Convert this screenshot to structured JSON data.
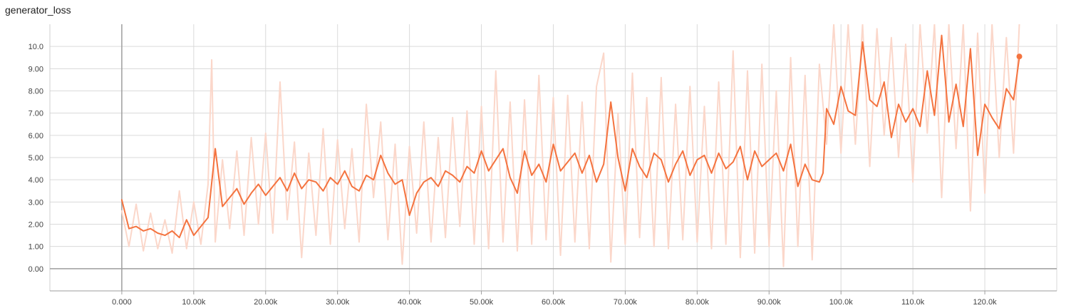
{
  "chart_data": {
    "type": "line",
    "title": "generator_loss",
    "xlabel": "",
    "ylabel": "",
    "xlim": [
      -10000,
      130000
    ],
    "ylim": [
      -1,
      11
    ],
    "grid": true,
    "x_ticks": [
      {
        "value": 0,
        "label": "0.000"
      },
      {
        "value": 10000,
        "label": "10.00k"
      },
      {
        "value": 20000,
        "label": "20.00k"
      },
      {
        "value": 30000,
        "label": "30.00k"
      },
      {
        "value": 40000,
        "label": "40.00k"
      },
      {
        "value": 50000,
        "label": "50.00k"
      },
      {
        "value": 60000,
        "label": "60.00k"
      },
      {
        "value": 70000,
        "label": "70.00k"
      },
      {
        "value": 80000,
        "label": "80.00k"
      },
      {
        "value": 90000,
        "label": "90.00k"
      },
      {
        "value": 100000,
        "label": "100.0k"
      },
      {
        "value": 110000,
        "label": "110.0k"
      },
      {
        "value": 120000,
        "label": "120.0k"
      }
    ],
    "y_ticks": [
      {
        "value": 0,
        "label": "0.00"
      },
      {
        "value": 1,
        "label": "1.00"
      },
      {
        "value": 2,
        "label": "2.00"
      },
      {
        "value": 3,
        "label": "3.00"
      },
      {
        "value": 4,
        "label": "4.00"
      },
      {
        "value": 5,
        "label": "5.00"
      },
      {
        "value": 6,
        "label": "6.00"
      },
      {
        "value": 7,
        "label": "7.00"
      },
      {
        "value": 8,
        "label": "8.00"
      },
      {
        "value": 9,
        "label": "9.00"
      },
      {
        "value": 10,
        "label": "10.0"
      }
    ],
    "series": [
      {
        "role": "smoothed",
        "color": "#f4733f",
        "x": [
          0,
          1000,
          2000,
          3000,
          4000,
          5000,
          6000,
          7000,
          8000,
          9000,
          10000,
          11000,
          12000,
          13000,
          14000,
          15000,
          16000,
          17000,
          18000,
          19000,
          20000,
          21000,
          22000,
          23000,
          24000,
          25000,
          26000,
          27000,
          28000,
          29000,
          30000,
          31000,
          32000,
          33000,
          34000,
          35000,
          36000,
          37000,
          38000,
          39000,
          40000,
          41000,
          42000,
          43000,
          44000,
          45000,
          46000,
          47000,
          48000,
          49000,
          50000,
          51000,
          52000,
          53000,
          54000,
          55000,
          56000,
          57000,
          58000,
          59000,
          60000,
          61000,
          62000,
          63000,
          64000,
          65000,
          66000,
          67000,
          68000,
          69000,
          70000,
          71000,
          72000,
          73000,
          74000,
          75000,
          76000,
          77000,
          78000,
          79000,
          80000,
          81000,
          82000,
          83000,
          84000,
          85000,
          86000,
          87000,
          88000,
          89000,
          90000,
          91000,
          92000,
          93000,
          94000,
          95000,
          96000,
          97000,
          97500,
          98000,
          99000,
          100000,
          101000,
          102000,
          103000,
          104000,
          105000,
          106000,
          107000,
          108000,
          109000,
          110000,
          111000,
          112000,
          113000,
          114000,
          115000,
          116000,
          117000,
          118000,
          119000,
          120000,
          121000,
          122000,
          123000,
          124000,
          124800
        ],
        "y": [
          3.1,
          1.8,
          1.9,
          1.7,
          1.8,
          1.6,
          1.5,
          1.7,
          1.4,
          2.2,
          1.5,
          1.9,
          2.3,
          5.4,
          2.8,
          3.2,
          3.6,
          2.9,
          3.4,
          3.8,
          3.3,
          3.7,
          4.1,
          3.5,
          4.3,
          3.6,
          4.0,
          3.9,
          3.5,
          4.1,
          3.8,
          4.4,
          3.7,
          3.5,
          4.2,
          4.0,
          5.1,
          4.3,
          3.8,
          4.0,
          2.4,
          3.4,
          3.9,
          4.1,
          3.7,
          4.4,
          4.2,
          3.9,
          4.6,
          4.3,
          5.3,
          4.4,
          4.9,
          5.4,
          4.1,
          3.4,
          5.3,
          4.2,
          4.7,
          3.9,
          5.6,
          4.4,
          4.8,
          5.2,
          4.3,
          5.1,
          3.9,
          4.7,
          7.5,
          5.0,
          3.5,
          5.4,
          4.6,
          4.1,
          5.2,
          4.9,
          3.9,
          4.7,
          5.3,
          4.2,
          4.9,
          5.1,
          4.3,
          5.2,
          4.5,
          4.8,
          5.5,
          4.0,
          5.3,
          4.6,
          4.9,
          5.2,
          4.4,
          5.6,
          3.7,
          4.7,
          4.0,
          3.9,
          4.3,
          7.2,
          6.5,
          8.2,
          7.1,
          6.9,
          10.2,
          7.6,
          7.3,
          8.4,
          5.9,
          7.4,
          6.6,
          7.2,
          6.4,
          8.9,
          6.9,
          10.5,
          6.6,
          8.3,
          6.4,
          9.9,
          5.1,
          7.4,
          6.8,
          6.3,
          8.1,
          7.6,
          9.5
        ]
      },
      {
        "role": "raw",
        "color": "#fbd7ca",
        "x": [
          0,
          1000,
          2000,
          3000,
          4000,
          5000,
          6000,
          7000,
          8000,
          9000,
          10000,
          11000,
          12000,
          12500,
          13000,
          14000,
          15000,
          16000,
          17000,
          18000,
          19000,
          20000,
          21000,
          22000,
          23000,
          24000,
          25000,
          26000,
          27000,
          28000,
          29000,
          30000,
          31000,
          32000,
          33000,
          34000,
          35000,
          36000,
          37000,
          38000,
          39000,
          40000,
          41000,
          42000,
          43000,
          44000,
          45000,
          46000,
          47000,
          48000,
          49000,
          50000,
          51000,
          52000,
          53000,
          54000,
          55000,
          56000,
          57000,
          58000,
          59000,
          60000,
          61000,
          62000,
          63000,
          64000,
          65000,
          66000,
          67000,
          68000,
          69000,
          70000,
          71000,
          72000,
          73000,
          74000,
          75000,
          76000,
          77000,
          78000,
          79000,
          80000,
          81000,
          82000,
          83000,
          84000,
          85000,
          86000,
          87000,
          88000,
          89000,
          90000,
          91000,
          92000,
          93000,
          94000,
          95000,
          96000,
          97000,
          98000,
          99000,
          100000,
          101000,
          102000,
          103000,
          104000,
          105000,
          106000,
          107000,
          108000,
          109000,
          110000,
          111000,
          112000,
          113000,
          114000,
          115000,
          116000,
          117000,
          118000,
          119000,
          120000,
          121000,
          122000,
          123000,
          124000,
          124800
        ],
        "y": [
          2.6,
          1.0,
          2.9,
          0.8,
          2.5,
          0.9,
          2.2,
          0.7,
          3.5,
          0.9,
          3.0,
          1.1,
          3.8,
          9.4,
          1.2,
          4.9,
          1.8,
          5.3,
          1.5,
          5.9,
          2.0,
          6.1,
          1.6,
          8.4,
          2.2,
          5.7,
          0.5,
          5.2,
          1.5,
          6.3,
          1.1,
          5.8,
          1.8,
          5.4,
          1.2,
          7.4,
          3.2,
          6.6,
          1.3,
          5.6,
          0.2,
          5.5,
          1.6,
          6.6,
          1.2,
          5.9,
          1.4,
          6.8,
          1.9,
          7.1,
          1.1,
          7.3,
          0.9,
          8.9,
          1.2,
          7.5,
          0.8,
          7.6,
          1.1,
          8.7,
          1.3,
          7.7,
          0.6,
          7.8,
          1.2,
          7.5,
          0.9,
          8.2,
          9.7,
          0.3,
          7.0,
          1.1,
          8.8,
          1.4,
          7.7,
          1.0,
          8.6,
          0.9,
          7.4,
          1.3,
          8.2,
          1.2,
          7.3,
          0.9,
          8.4,
          1.1,
          9.8,
          0.5,
          8.9,
          0.7,
          9.2,
          1.0,
          8.0,
          0.1,
          9.5,
          1.0,
          8.7,
          0.4,
          9.2,
          5.6,
          11.0,
          5.2,
          11.0,
          5.6,
          11.0,
          4.6,
          10.8,
          6.0,
          10.4,
          5.0,
          10.1,
          3.9,
          11.0,
          6.1,
          11.0,
          3.2,
          11.0,
          5.4,
          11.0,
          2.6,
          10.6,
          3.4,
          11.0,
          5.0,
          10.4,
          5.2,
          11.0
        ]
      }
    ],
    "last_point": {
      "x": 124800,
      "y": 9.55
    }
  }
}
